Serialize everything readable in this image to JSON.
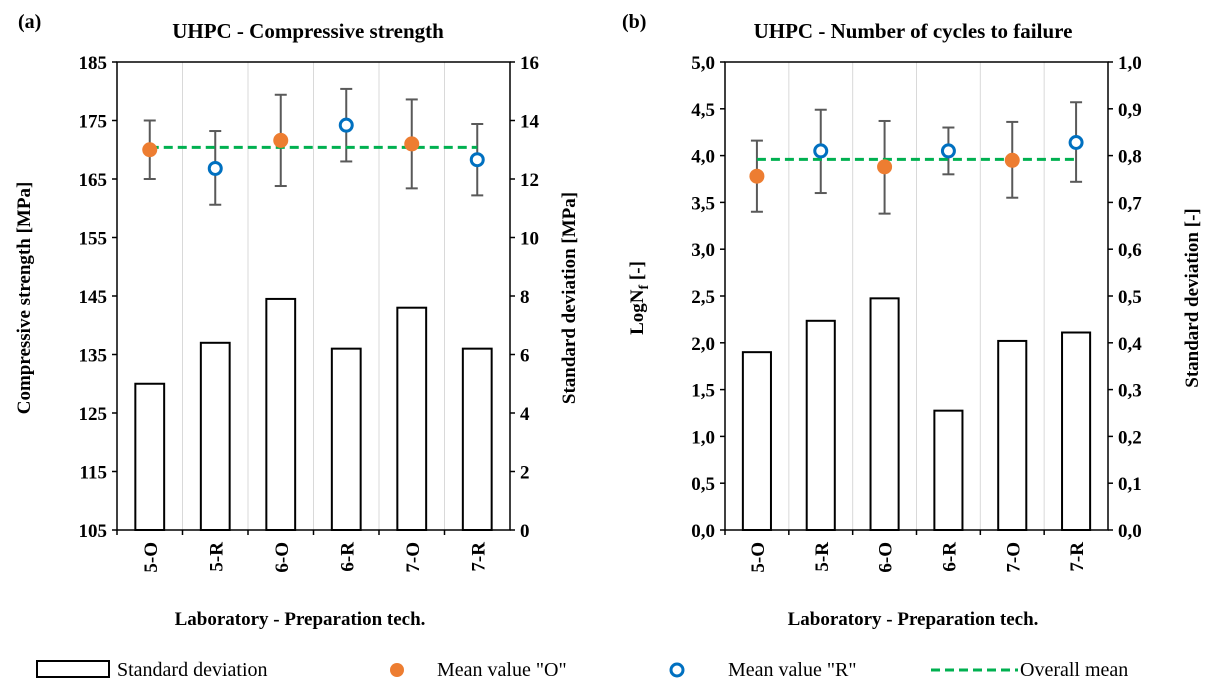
{
  "colors": {
    "mean_o": "#ED7D31",
    "mean_r": "#0070C0",
    "overall_mean": "#00B050",
    "bars_edge": "#000000",
    "grid": "#D9D9D9",
    "errorbar": "#595959"
  },
  "legend": {
    "std_label": "Standard deviation",
    "mean_o_label": "Mean value \"O\"",
    "mean_r_label": "Mean value \"R\"",
    "overall_label": "Overall mean"
  },
  "chart_data": [
    {
      "panel_label": "(a)",
      "type": "bar+scatter",
      "title": "UHPC - Compressive strength",
      "xlabel": "Laboratory - Preparation tech.",
      "ylabel_left": "Compressive strength [MPa]",
      "ylabel_right": "Standard deviation [MPa]",
      "categories": [
        "5-O",
        "5-R",
        "6-O",
        "6-R",
        "7-O",
        "7-R"
      ],
      "ylim_left": [
        105,
        185
      ],
      "ylim_right": [
        0,
        16
      ],
      "yticks_left": [
        "105",
        "115",
        "125",
        "135",
        "145",
        "155",
        "165",
        "175",
        "185"
      ],
      "yticks_right": [
        "0",
        "2",
        "4",
        "6",
        "8",
        "10",
        "12",
        "14",
        "16"
      ],
      "grid": "vertical",
      "std_dev": [
        5.0,
        6.4,
        7.9,
        6.2,
        7.6,
        6.2
      ],
      "mean_o": [
        170.0,
        null,
        171.6,
        null,
        171.0,
        null
      ],
      "mean_r": [
        null,
        166.8,
        null,
        174.2,
        null,
        168.3
      ],
      "error_low": [
        165.0,
        160.6,
        163.8,
        168.0,
        163.4,
        162.2
      ],
      "error_high": [
        175.0,
        173.2,
        179.4,
        180.4,
        178.6,
        174.4
      ],
      "overall_mean": 170.4
    },
    {
      "panel_label": "(b)",
      "type": "bar+scatter",
      "title": "UHPC - Number of cycles to failure",
      "xlabel": "Laboratory - Preparation tech.",
      "ylabel_left_main": "LogN",
      "ylabel_left_sub": "f",
      "ylabel_left_suffix": " [-]",
      "ylabel_right": "Standard deviation [-]",
      "categories": [
        "5-O",
        "5-R",
        "6-O",
        "6-R",
        "7-O",
        "7-R"
      ],
      "ylim_left": [
        0,
        5
      ],
      "ylim_right": [
        0,
        1
      ],
      "yticks_left": [
        "0,0",
        "0,5",
        "1,0",
        "1,5",
        "2,0",
        "2,5",
        "3,0",
        "3,5",
        "4,0",
        "4,5",
        "5,0"
      ],
      "yticks_right": [
        "0,0",
        "0,1",
        "0,2",
        "0,3",
        "0,4",
        "0,5",
        "0,6",
        "0,7",
        "0,8",
        "0,9",
        "1,0"
      ],
      "grid": "vertical",
      "std_dev": [
        0.38,
        0.447,
        0.495,
        0.255,
        0.404,
        0.422
      ],
      "mean_o": [
        3.78,
        null,
        3.88,
        null,
        3.95,
        null
      ],
      "mean_r": [
        null,
        4.05,
        null,
        4.05,
        null,
        4.14
      ],
      "error_low": [
        3.4,
        3.6,
        3.38,
        3.8,
        3.55,
        3.72
      ],
      "error_high": [
        4.16,
        4.49,
        4.37,
        4.3,
        4.36,
        4.57
      ],
      "overall_mean": 3.96
    }
  ]
}
